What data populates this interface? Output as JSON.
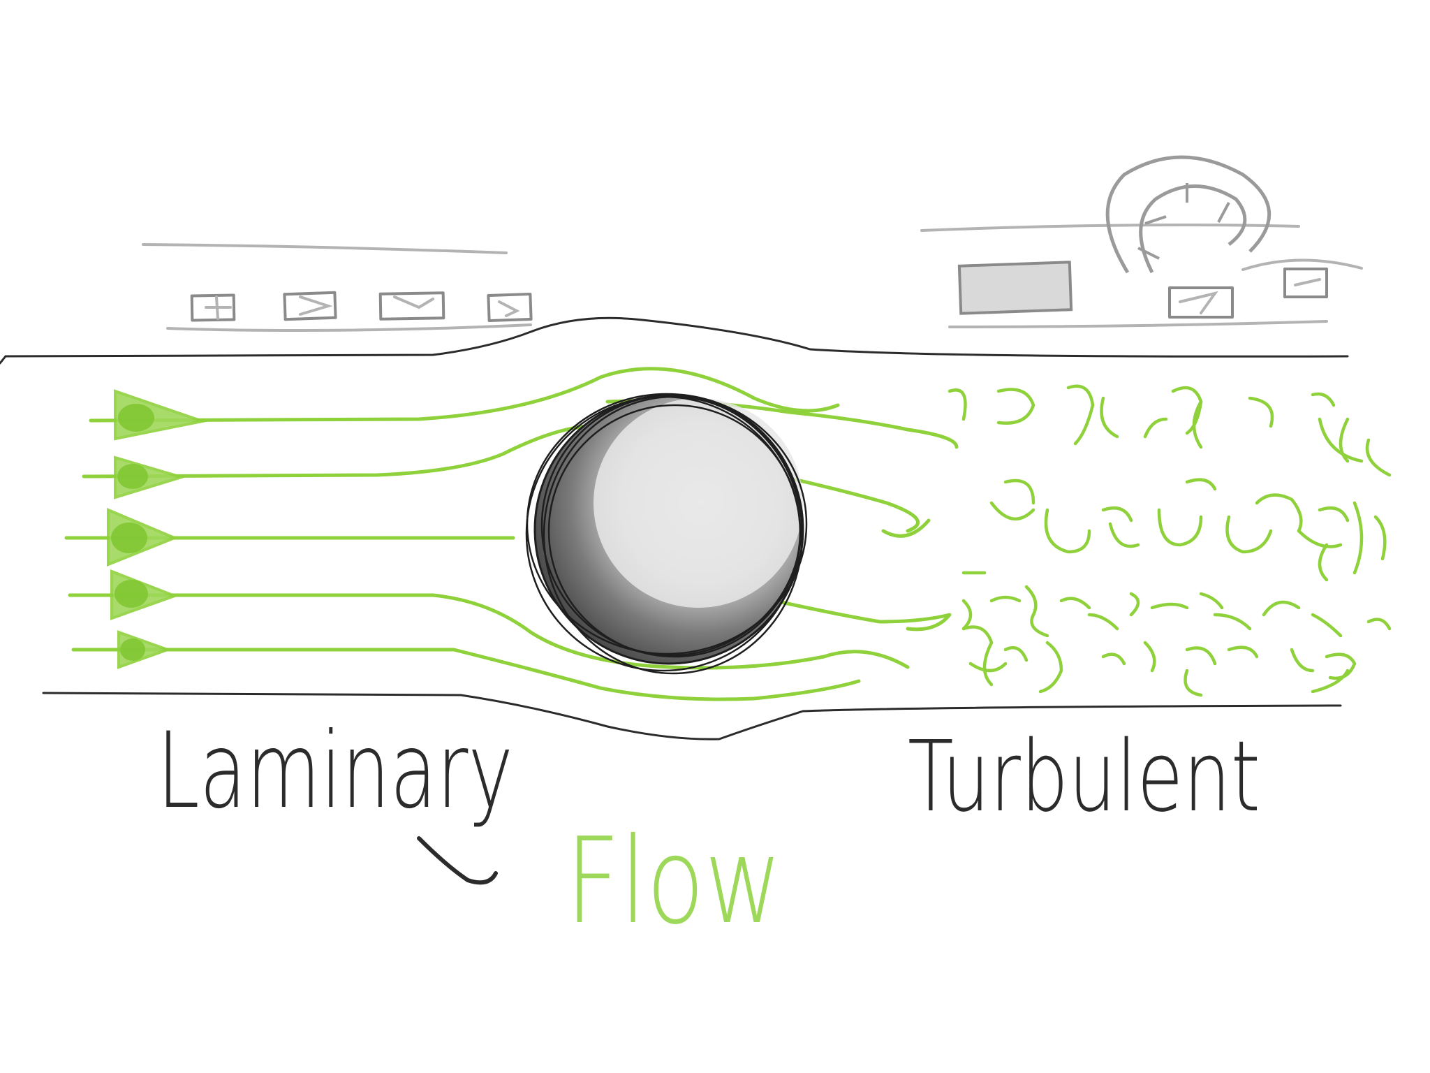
{
  "labels": {
    "left": "Laminary",
    "center": "Flow",
    "right": "Turbulent"
  },
  "colors": {
    "flow_green": "#8ed13b",
    "ink": "#2b2b2b",
    "sketch_gray": "#b3b3b3",
    "obstacle_dark": "#6f6f6f",
    "obstacle_light": "#e6e6e6"
  },
  "icons": {
    "obstacle": "sphere-obstacle-icon",
    "arrows": "flow-arrow-icon",
    "vortices": "eddy-icon"
  }
}
